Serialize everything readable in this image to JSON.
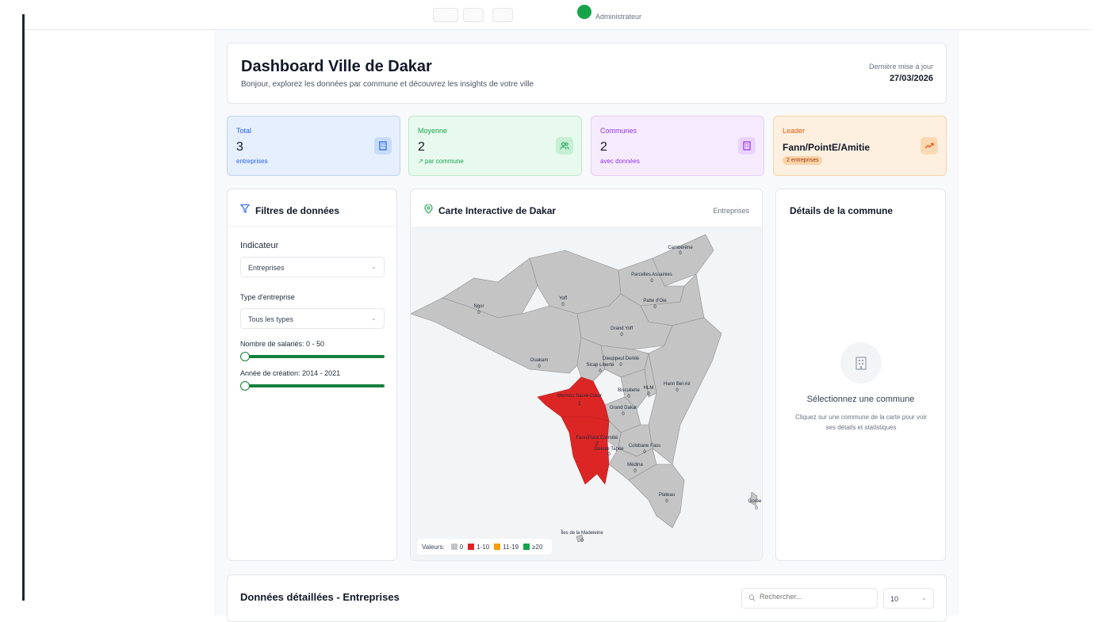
{
  "topbar": {
    "breadcrumb": "",
    "role": "Administrateur"
  },
  "header": {
    "title": "Dashboard Ville de Dakar",
    "subtitle": "Bonjour, explorez les données par commune et découvrez les insights de votre ville",
    "last_update_label": "Dernière mise à jour",
    "last_update_date": "27/03/2026"
  },
  "stats": [
    {
      "label": "Total",
      "value": "3",
      "sub": "entreprises",
      "icon": "building-icon"
    },
    {
      "label": "Moyenne",
      "value": "2",
      "sub": "↗ par commune",
      "icon": "users-icon"
    },
    {
      "label": "Communes",
      "value": "2",
      "sub": "avec données",
      "icon": "building-icon"
    },
    {
      "label": "Leader",
      "value": "Fann/PointE/Amitie",
      "sub": "2 entreprises",
      "icon": "trending-up-icon"
    }
  ],
  "filters": {
    "title": "Filtres de données",
    "indicator_label": "Indicateur",
    "indicator_value": "Entreprises",
    "type_label": "Type d'entreprise",
    "type_value": "Tous les types",
    "employees_label": "Nombre de salariés: 0 - 50",
    "year_label": "Année de création: 2014 - 2021"
  },
  "map": {
    "title": "Carte Interactive de Dakar",
    "indicator": "Entreprises",
    "legend_title": "Valeurs:",
    "legend": [
      {
        "label": "0",
        "color": "#c4c4c4"
      },
      {
        "label": "1-10",
        "color": "#dc2626"
      },
      {
        "label": "11-19",
        "color": "#f59e0b"
      },
      {
        "label": "≥20",
        "color": "#16a34a"
      }
    ],
    "communes": [
      {
        "name": "Cambérène",
        "value": "0"
      },
      {
        "name": "Parcelles Assainies",
        "value": "0"
      },
      {
        "name": "Patte d'Oie",
        "value": "0"
      },
      {
        "name": "Yoff",
        "value": "0"
      },
      {
        "name": "Ngor",
        "value": "0"
      },
      {
        "name": "Grand Yoff",
        "value": "0"
      },
      {
        "name": "Ouakam",
        "value": "0"
      },
      {
        "name": "Dieuppeul Derklé",
        "value": "0"
      },
      {
        "name": "Sicap Liberté",
        "value": "0"
      },
      {
        "name": "Hann Bel-Air",
        "value": "0"
      },
      {
        "name": "Mermoz Sacré-Cœur",
        "value": "1"
      },
      {
        "name": "Biscuiterie",
        "value": "0"
      },
      {
        "name": "HLM",
        "value": "0"
      },
      {
        "name": "Grand Dakar",
        "value": "0"
      },
      {
        "name": "Fann/Point E/Amitié",
        "value": "2"
      },
      {
        "name": "Gueule Tapée",
        "value": "0"
      },
      {
        "name": "Colobane Fass",
        "value": "0"
      },
      {
        "name": "Médina",
        "value": "0"
      },
      {
        "name": "Plateau",
        "value": "0"
      },
      {
        "name": "Gorée",
        "value": "0"
      },
      {
        "name": "Îles de la Madeleine",
        "value": "0"
      }
    ]
  },
  "details": {
    "title": "Détails de la commune",
    "empty_title": "Sélectionnez une commune",
    "empty_hint": "Cliquez sur une commune de la carte pour voir ses détails et statistiques"
  },
  "table": {
    "title": "Données détaillées - Entreprises",
    "search_placeholder": "Rechercher...",
    "page_size": "10"
  }
}
